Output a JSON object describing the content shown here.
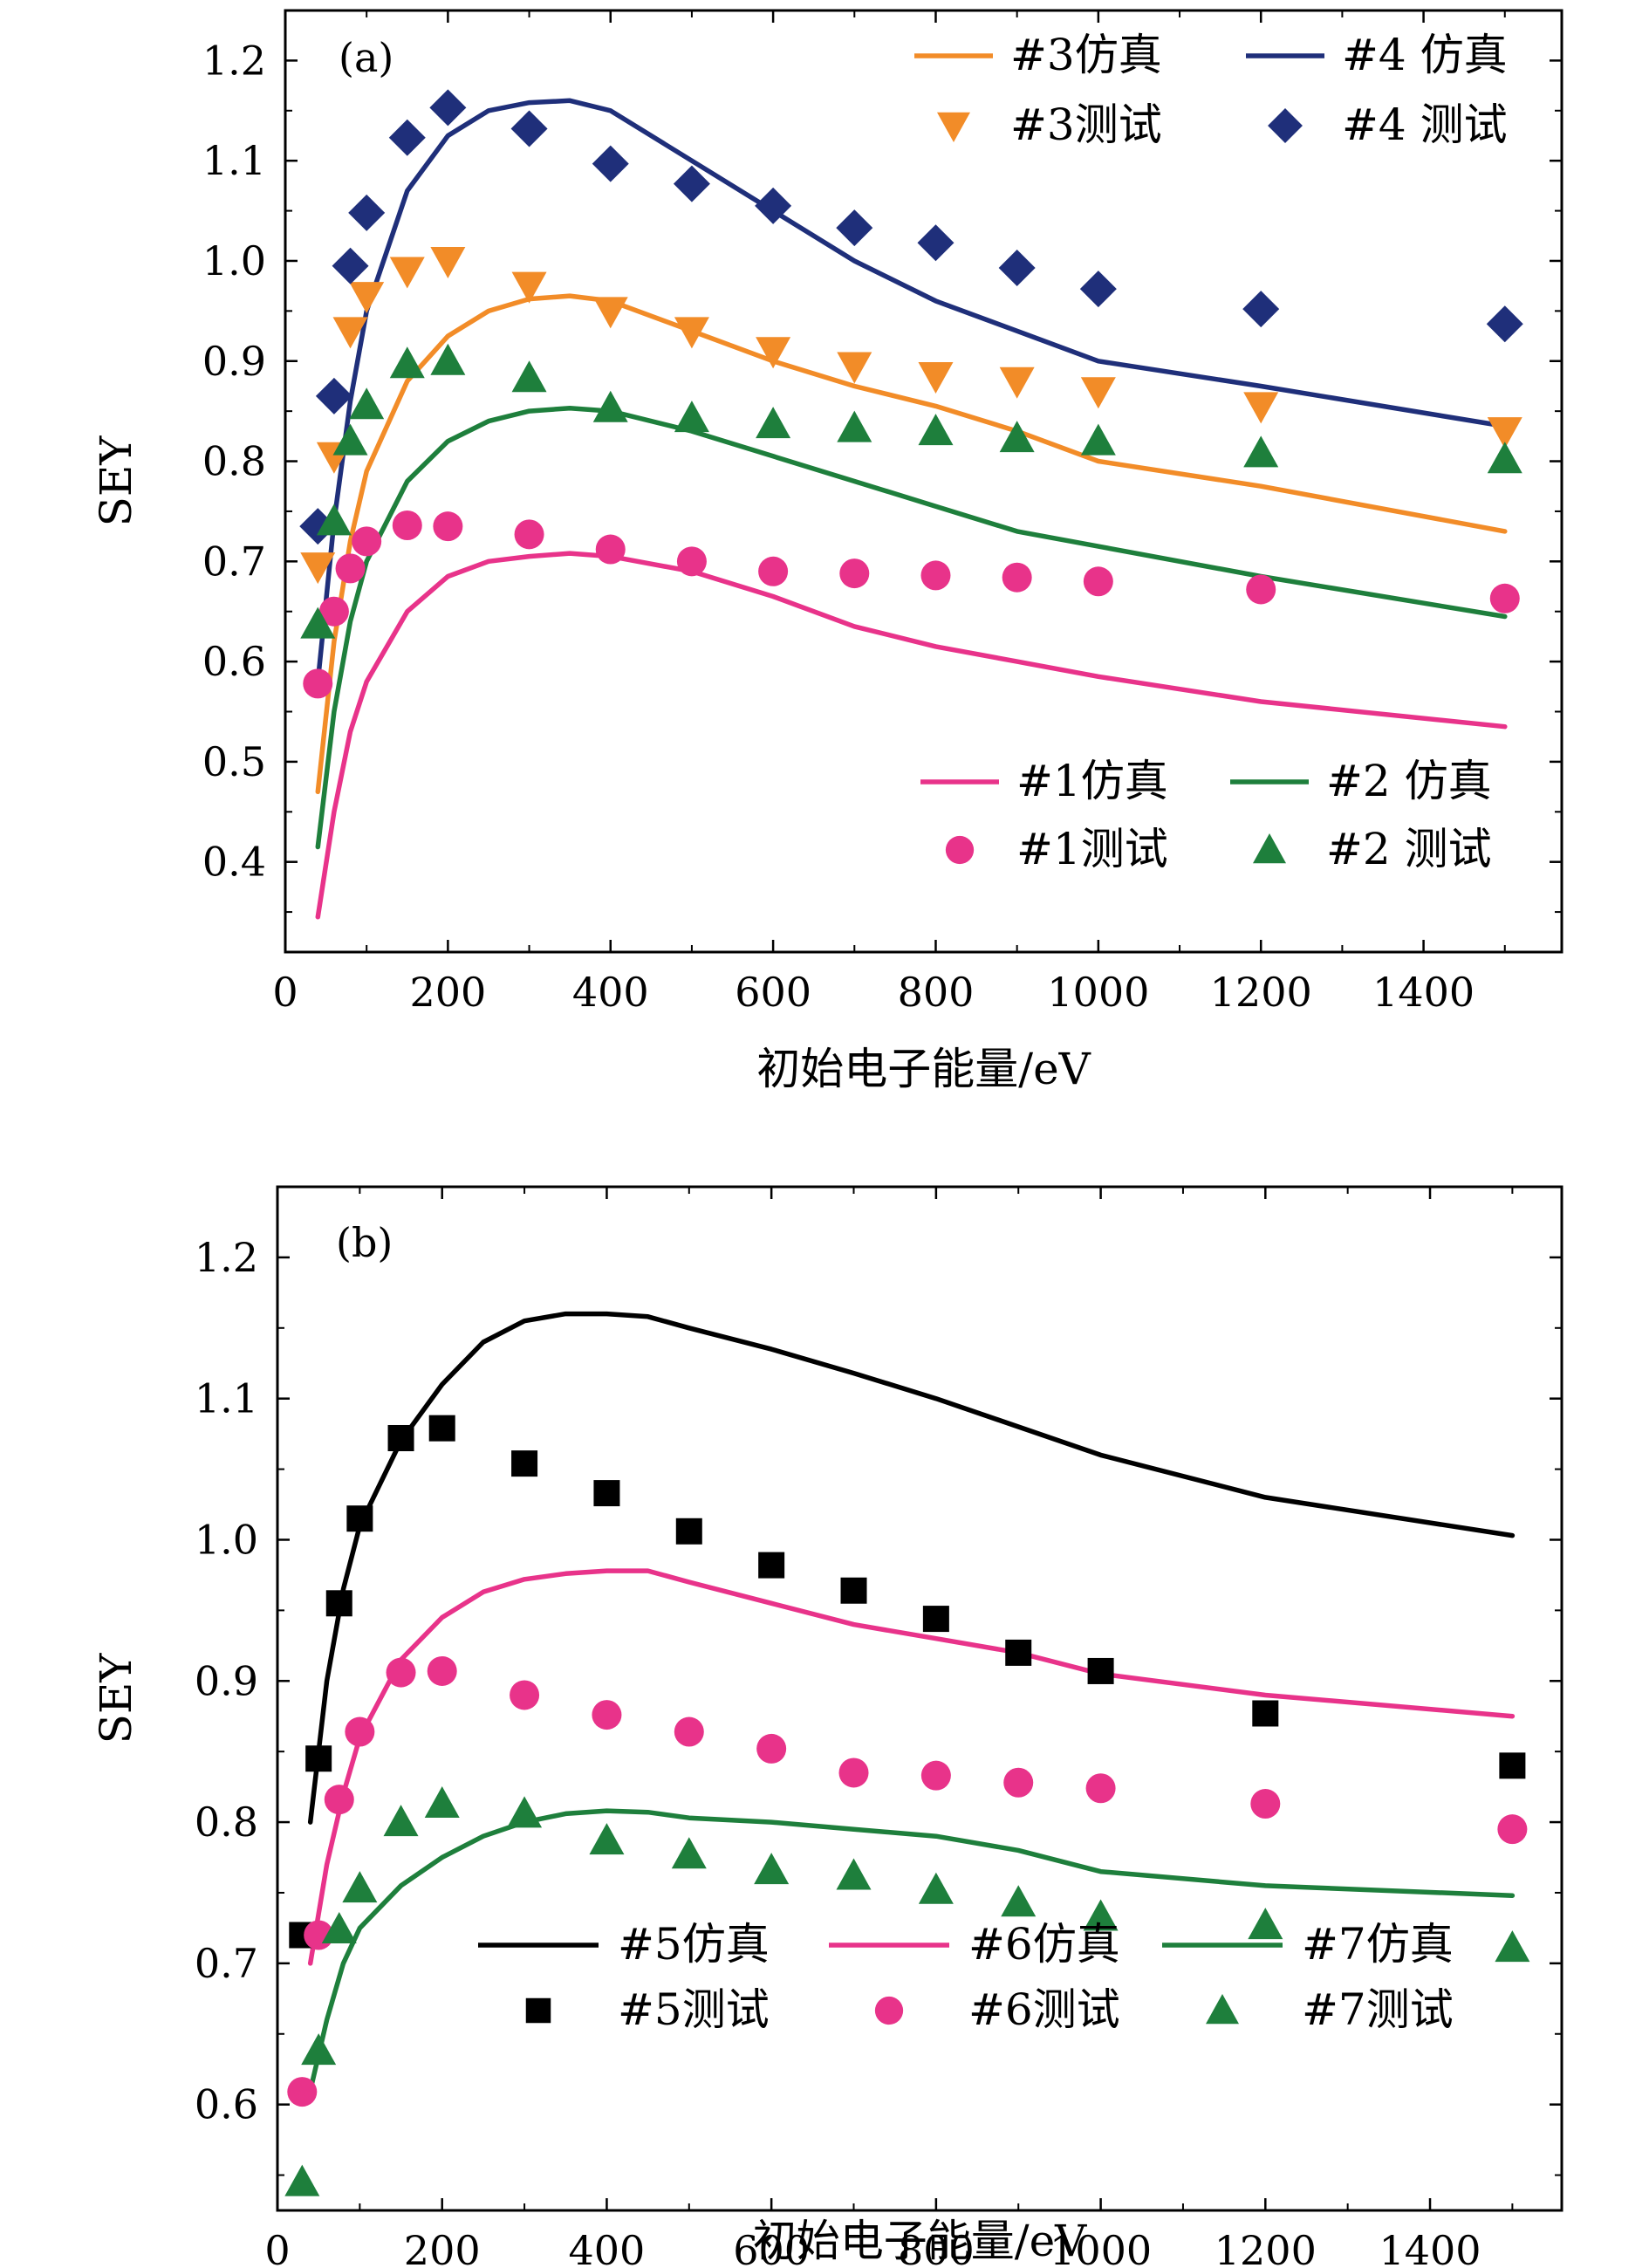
{
  "chart_data": [
    {
      "type": "line",
      "panel_label": "(a)",
      "xlabel": "初始电子能量/eV",
      "ylabel": "SEY",
      "xlim": [
        0,
        1570
      ],
      "ylim": [
        0.31,
        1.25
      ],
      "xticks": [
        0,
        200,
        400,
        600,
        800,
        1000,
        1200,
        1400
      ],
      "yticks": [
        0.4,
        0.5,
        0.6,
        0.7,
        0.8,
        0.9,
        1.0,
        1.1,
        1.2
      ],
      "xtick_labels": [
        "0",
        "200",
        "400",
        "600",
        "800",
        "1000",
        "1200",
        "1400"
      ],
      "ytick_labels": [
        "0.4",
        "0.5",
        "0.6",
        "0.7",
        "0.8",
        "0.9",
        "1.0",
        "1.1",
        "1.2"
      ],
      "grid": false,
      "series": [
        {
          "name": "#3仿真",
          "kind": "line",
          "color": "#f28c28",
          "x": [
            40,
            60,
            80,
            100,
            150,
            200,
            250,
            300,
            350,
            400,
            500,
            600,
            700,
            800,
            900,
            1000,
            1200,
            1500
          ],
          "y": [
            0.47,
            0.62,
            0.72,
            0.79,
            0.88,
            0.925,
            0.95,
            0.962,
            0.965,
            0.96,
            0.93,
            0.9,
            0.875,
            0.855,
            0.83,
            0.8,
            0.775,
            0.73
          ]
        },
        {
          "name": "#4仿真",
          "kind": "line",
          "color": "#1f2f7a",
          "x": [
            40,
            60,
            80,
            100,
            150,
            200,
            250,
            300,
            350,
            400,
            500,
            600,
            700,
            800,
            900,
            1000,
            1200,
            1500
          ],
          "y": [
            0.58,
            0.74,
            0.86,
            0.95,
            1.07,
            1.125,
            1.15,
            1.158,
            1.16,
            1.15,
            1.1,
            1.05,
            1.0,
            0.96,
            0.93,
            0.9,
            0.875,
            0.835
          ]
        },
        {
          "name": "#3测试",
          "kind": "marker",
          "marker": "triangle-down",
          "color": "#f28c28",
          "x": [
            40,
            60,
            80,
            100,
            150,
            200,
            300,
            400,
            500,
            600,
            700,
            800,
            900,
            1000,
            1200,
            1500
          ],
          "y": [
            0.695,
            0.805,
            0.93,
            0.965,
            0.99,
            1.0,
            0.975,
            0.95,
            0.93,
            0.91,
            0.895,
            0.885,
            0.88,
            0.87,
            0.855,
            0.83
          ]
        },
        {
          "name": "#4测试",
          "kind": "marker",
          "marker": "diamond",
          "color": "#1f2f7a",
          "x": [
            40,
            60,
            80,
            100,
            150,
            200,
            300,
            400,
            500,
            600,
            700,
            800,
            900,
            1000,
            1200,
            1500
          ],
          "y": [
            0.735,
            0.865,
            0.995,
            1.048,
            1.123,
            1.153,
            1.132,
            1.097,
            1.077,
            1.055,
            1.033,
            1.018,
            0.993,
            0.972,
            0.952,
            0.937
          ]
        },
        {
          "name": "#1仿真",
          "kind": "line",
          "color": "#e8338a",
          "x": [
            40,
            60,
            80,
            100,
            150,
            200,
            250,
            300,
            350,
            400,
            500,
            600,
            700,
            800,
            900,
            1000,
            1200,
            1500
          ],
          "y": [
            0.345,
            0.45,
            0.53,
            0.58,
            0.65,
            0.685,
            0.7,
            0.705,
            0.708,
            0.705,
            0.69,
            0.665,
            0.635,
            0.615,
            0.6,
            0.585,
            0.56,
            0.535
          ]
        },
        {
          "name": "#2仿真",
          "kind": "line",
          "color": "#1e7f3c",
          "x": [
            40,
            60,
            80,
            100,
            150,
            200,
            250,
            300,
            350,
            400,
            500,
            600,
            700,
            800,
            900,
            1000,
            1200,
            1500
          ],
          "y": [
            0.415,
            0.55,
            0.64,
            0.7,
            0.78,
            0.82,
            0.84,
            0.85,
            0.853,
            0.85,
            0.83,
            0.805,
            0.78,
            0.755,
            0.73,
            0.715,
            0.685,
            0.645
          ]
        },
        {
          "name": "#1测试",
          "kind": "marker",
          "marker": "circle",
          "color": "#e8338a",
          "x": [
            40,
            60,
            80,
            100,
            150,
            200,
            300,
            400,
            500,
            600,
            700,
            800,
            900,
            1000,
            1200,
            1500
          ],
          "y": [
            0.578,
            0.65,
            0.693,
            0.72,
            0.736,
            0.735,
            0.727,
            0.712,
            0.7,
            0.69,
            0.688,
            0.686,
            0.684,
            0.68,
            0.672,
            0.663
          ]
        },
        {
          "name": "#2测试",
          "kind": "marker",
          "marker": "triangle-up",
          "color": "#1e7f3c",
          "x": [
            40,
            60,
            80,
            100,
            150,
            200,
            300,
            400,
            500,
            600,
            700,
            800,
            900,
            1000,
            1200,
            1500
          ],
          "y": [
            0.637,
            0.74,
            0.82,
            0.856,
            0.897,
            0.9,
            0.883,
            0.853,
            0.843,
            0.837,
            0.833,
            0.83,
            0.823,
            0.82,
            0.808,
            0.802
          ]
        }
      ],
      "legends": [
        {
          "position": "top-right",
          "columns": 2,
          "entries": [
            "#3仿真",
            "#4仿真",
            "#3测试",
            "#4测试"
          ],
          "labels": [
            "#3仿真",
            "#4 仿真",
            "#3测试",
            "#4 测试"
          ]
        },
        {
          "position": "bottom-right",
          "columns": 2,
          "entries": [
            "#1仿真",
            "#2仿真",
            "#1测试",
            "#2测试"
          ],
          "labels": [
            "#1仿真",
            "#2 仿真",
            "#1测试",
            "#2 测试"
          ]
        }
      ]
    },
    {
      "type": "line",
      "panel_label": "(b)",
      "xlabel": "初始电子能量/eV",
      "ylabel": "SEY",
      "xlim": [
        0,
        1560
      ],
      "ylim": [
        0.525,
        1.25
      ],
      "xticks": [
        0,
        200,
        400,
        600,
        800,
        1000,
        1200,
        1400
      ],
      "yticks": [
        0.6,
        0.7,
        0.8,
        0.9,
        1.0,
        1.1,
        1.2
      ],
      "xtick_labels": [
        "0",
        "200",
        "400",
        "600",
        "800",
        "1000",
        "1200",
        "1400"
      ],
      "ytick_labels": [
        "0.6",
        "0.7",
        "0.8",
        "0.9",
        "1.0",
        "1.1",
        "1.2"
      ],
      "grid": false,
      "series": [
        {
          "name": "#5仿真",
          "kind": "line",
          "color": "#000000",
          "x": [
            40,
            60,
            80,
            100,
            150,
            200,
            250,
            300,
            350,
            400,
            450,
            500,
            600,
            700,
            800,
            900,
            1000,
            1200,
            1500
          ],
          "y": [
            0.8,
            0.9,
            0.965,
            1.01,
            1.07,
            1.11,
            1.14,
            1.155,
            1.16,
            1.16,
            1.158,
            1.15,
            1.135,
            1.118,
            1.1,
            1.08,
            1.06,
            1.03,
            1.003
          ]
        },
        {
          "name": "#6仿真",
          "kind": "line",
          "color": "#e8338a",
          "x": [
            40,
            60,
            80,
            100,
            150,
            200,
            250,
            300,
            350,
            400,
            450,
            500,
            600,
            700,
            800,
            900,
            1000,
            1200,
            1500
          ],
          "y": [
            0.7,
            0.77,
            0.82,
            0.86,
            0.915,
            0.945,
            0.963,
            0.972,
            0.976,
            0.978,
            0.978,
            0.97,
            0.955,
            0.94,
            0.93,
            0.92,
            0.905,
            0.89,
            0.875
          ]
        },
        {
          "name": "#7仿真",
          "kind": "line",
          "color": "#1e7f3c",
          "x": [
            40,
            60,
            80,
            100,
            150,
            200,
            250,
            300,
            350,
            400,
            450,
            500,
            600,
            700,
            800,
            900,
            1000,
            1200,
            1500
          ],
          "y": [
            0.61,
            0.66,
            0.7,
            0.725,
            0.755,
            0.775,
            0.79,
            0.8,
            0.806,
            0.808,
            0.807,
            0.803,
            0.8,
            0.795,
            0.79,
            0.78,
            0.765,
            0.755,
            0.748
          ]
        },
        {
          "name": "#5测试",
          "kind": "marker",
          "marker": "square",
          "color": "#000000",
          "x": [
            30,
            50,
            75,
            100,
            150,
            200,
            300,
            400,
            500,
            600,
            700,
            800,
            900,
            1000,
            1200,
            1500
          ],
          "y": [
            0.72,
            0.845,
            0.955,
            1.015,
            1.072,
            1.079,
            1.054,
            1.033,
            1.006,
            0.982,
            0.964,
            0.944,
            0.92,
            0.907,
            0.877,
            0.84
          ]
        },
        {
          "name": "#6测试",
          "kind": "marker",
          "marker": "circle",
          "color": "#e8338a",
          "x": [
            30,
            50,
            75,
            100,
            150,
            200,
            300,
            400,
            500,
            600,
            700,
            800,
            900,
            1000,
            1200,
            1500
          ],
          "y": [
            0.609,
            0.72,
            0.816,
            0.864,
            0.906,
            0.907,
            0.89,
            0.876,
            0.864,
            0.852,
            0.835,
            0.833,
            0.828,
            0.824,
            0.813,
            0.795
          ]
        },
        {
          "name": "#7测试",
          "kind": "marker",
          "marker": "triangle-up",
          "color": "#1e7f3c",
          "x": [
            30,
            50,
            75,
            100,
            150,
            200,
            300,
            400,
            500,
            600,
            700,
            800,
            900,
            1000,
            1200,
            1500
          ],
          "y": [
            0.545,
            0.638,
            0.724,
            0.753,
            0.8,
            0.813,
            0.806,
            0.787,
            0.777,
            0.766,
            0.762,
            0.752,
            0.743,
            0.733,
            0.727,
            0.711
          ]
        }
      ],
      "legends": [
        {
          "position": "bottom-center",
          "columns": 3,
          "entries": [
            "#5仿真",
            "#6仿真",
            "#7仿真",
            "#5测试",
            "#6测试",
            "#7测试"
          ],
          "labels": [
            "#5仿真",
            "#6仿真",
            "#7仿真",
            "#5测试",
            "#6测试",
            "#7测试"
          ]
        }
      ]
    }
  ]
}
